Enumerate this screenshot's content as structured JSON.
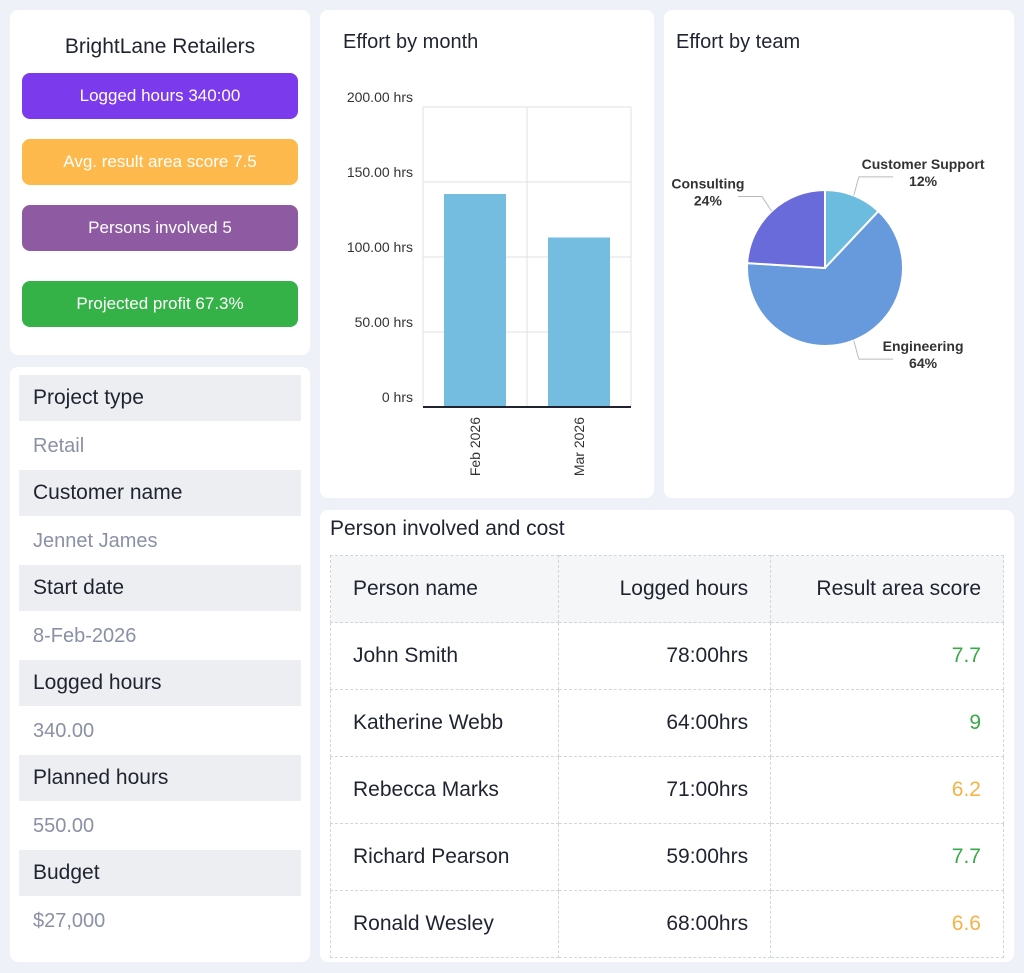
{
  "summary": {
    "title": "BrightLane Retailers",
    "badges": [
      {
        "text": "Logged hours 340:00",
        "color": "#7c3aed"
      },
      {
        "text": "Avg. result area score 7.5",
        "color": "#fdb94b"
      },
      {
        "text": "Persons involved  5",
        "color": "#8e5ba3"
      },
      {
        "text": "Projected profit 67.3%",
        "color": "#35b247"
      }
    ]
  },
  "details": [
    {
      "label": "Project type",
      "value": "Retail"
    },
    {
      "label": "Customer name",
      "value": "Jennet James"
    },
    {
      "label": "Start date",
      "value": "8-Feb-2026"
    },
    {
      "label": "Logged hours",
      "value": "340.00"
    },
    {
      "label": "Planned hours",
      "value": "550.00"
    },
    {
      "label": "Budget",
      "value": "$27,000"
    }
  ],
  "chart_data": [
    {
      "type": "bar",
      "title": "Effort by month",
      "categories": [
        "Feb 2026",
        "Mar 2026"
      ],
      "values": [
        142,
        113
      ],
      "color": "#74bde0",
      "ylim": [
        0,
        200
      ],
      "yticks": [
        {
          "value": 0,
          "label": "0 hrs"
        },
        {
          "value": 50,
          "label": "50.00 hrs"
        },
        {
          "value": 100,
          "label": "100.00 hrs"
        },
        {
          "value": 150,
          "label": "150.00 hrs"
        },
        {
          "value": 200,
          "label": "200.00 hrs"
        }
      ],
      "grid": true
    },
    {
      "type": "pie",
      "title": "Effort by team",
      "categories": [
        "Customer Support",
        "Engineering",
        "Consulting"
      ],
      "values": [
        12,
        64,
        24
      ],
      "value_labels": [
        "12%",
        "64%",
        "24%"
      ],
      "colors": [
        "#6bbcdf",
        "#6799dd",
        "#6a6bdb"
      ]
    }
  ],
  "table": {
    "title": "Person involved and cost",
    "columns": [
      "Person name",
      "Logged hours",
      "Result area score"
    ],
    "rows": [
      [
        "John Smith",
        "78:00hrs",
        7.7
      ],
      [
        "Katherine Webb",
        "64:00hrs",
        9
      ],
      [
        "Rebecca Marks",
        "71:00hrs",
        6.2
      ],
      [
        "Richard Pearson",
        "59:00hrs",
        7.7
      ],
      [
        "Ronald Wesley",
        "68:00hrs",
        6.6
      ]
    ],
    "score_colors": [
      "#3aaa48",
      "#3aaa48",
      "#f5b246",
      "#3aaa48",
      "#f5b246"
    ]
  }
}
